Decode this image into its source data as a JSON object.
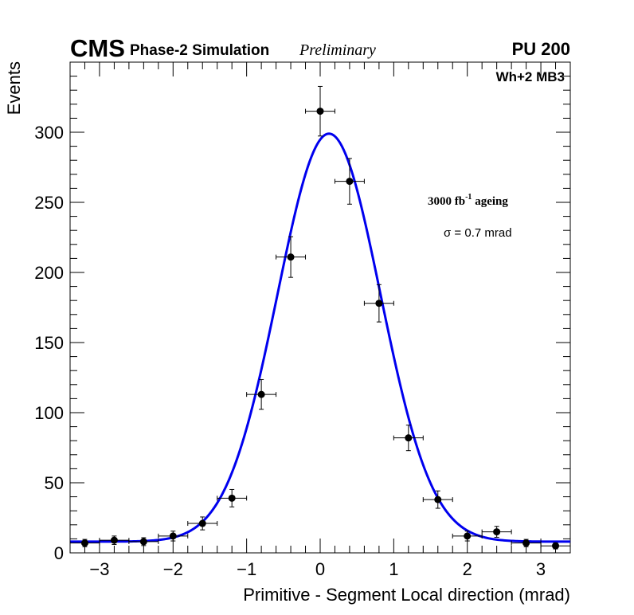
{
  "header": {
    "cms_label": "CMS",
    "simulation_label": "Phase-2 Simulation",
    "preliminary_label": "Preliminary",
    "pileup_label": "PU 200"
  },
  "annotations": {
    "chamber": "Wh+2 MB3",
    "ageing_main": "3000 fb",
    "ageing_exponent": "-1",
    "ageing_suffix": " ageing",
    "sigma_text": "σ = 0.7 mrad"
  },
  "chart_data": {
    "type": "scatter",
    "title": "",
    "xlabel": "Primitive - Segment Local direction (mrad)",
    "ylabel": "Events",
    "xlim": [
      -3.4,
      3.4
    ],
    "ylim": [
      0,
      350
    ],
    "x_ticks": [
      -3,
      -2,
      -1,
      0,
      1,
      2,
      3
    ],
    "x_tick_labels": [
      "−3",
      "−2",
      "−1",
      "0",
      "1",
      "2",
      "3"
    ],
    "y_ticks": [
      0,
      50,
      100,
      150,
      200,
      250,
      300
    ],
    "y_tick_labels": [
      "0",
      "50",
      "100",
      "150",
      "200",
      "250",
      "300"
    ],
    "grid": false,
    "series": [
      {
        "name": "Simulated events",
        "x": [
          -3.2,
          -2.8,
          -2.4,
          -2.0,
          -1.6,
          -1.2,
          -0.8,
          -0.4,
          0.0,
          0.4,
          0.8,
          1.2,
          1.6,
          2.0,
          2.4,
          2.8,
          3.2
        ],
        "y": [
          7,
          9,
          8,
          12,
          21,
          39,
          113,
          211,
          315,
          265,
          178,
          82,
          38,
          12,
          15,
          7,
          5
        ],
        "x_err": 0.2,
        "y_err": [
          2.6,
          3.0,
          2.8,
          3.5,
          4.6,
          6.2,
          10.6,
          14.5,
          17.7,
          16.3,
          13.3,
          9.1,
          6.2,
          3.5,
          3.9,
          2.6,
          2.2
        ]
      },
      {
        "name": "Gaussian fit",
        "function": "gaussian_plus_constant",
        "amplitude": 291,
        "mean": 0.12,
        "sigma": 0.7,
        "constant": 8
      }
    ]
  }
}
